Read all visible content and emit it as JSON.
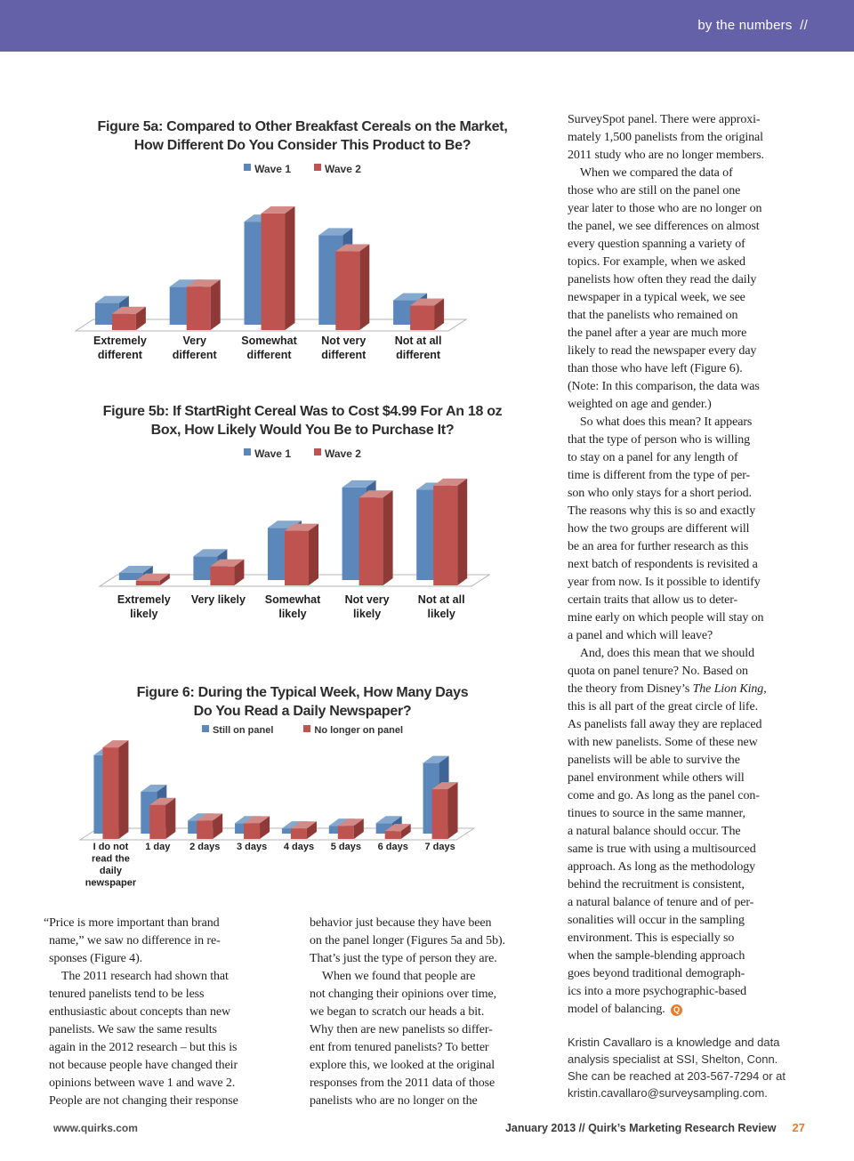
{
  "header": {
    "section_label": "by the numbers  //",
    "band_color": "#6461a8"
  },
  "chart_data": [
    {
      "type": "bar",
      "title": "Figure 5a: Compared to Other Breakfast Cereals on the Market, How Different Do You Consider This Product to Be?",
      "title_lines": [
        "Figure 5a: Compared to Other Breakfast Cereals on the Market,",
        "How Different Do You Consider This Product to Be?"
      ],
      "categories": [
        "Extremely\ndifferent",
        "Very\ndifferent",
        "Somewhat\ndifferent",
        "Not very\ndifferent",
        "Not at all\ndifferent"
      ],
      "series": [
        {
          "name": "Wave 1",
          "color": "#5c87bb",
          "color_top": "#85a8cf",
          "color_side": "#3f6496",
          "values": [
            8,
            14,
            38,
            33,
            9
          ]
        },
        {
          "name": "Wave 2",
          "color": "#bf5350",
          "color_top": "#d28a86",
          "color_side": "#8f3a37",
          "values": [
            6,
            16,
            43,
            29,
            9
          ]
        }
      ],
      "xlabel": "",
      "ylabel": "",
      "value_axis_shown": false,
      "note": "3D bar chart, no value axis; values estimated from bar heights (relative %)",
      "legend_position": "top"
    },
    {
      "type": "bar",
      "title": "Figure 5b: If StartRight Cereal Was to Cost $4.99 For An 18 oz Box, How Likely Would You Be to Purchase It?",
      "title_lines": [
        "Figure 5b: If StartRight Cereal Was to Cost $4.99 For An 18 oz",
        "Box, How Likely Would You Be to Purchase It?"
      ],
      "categories": [
        "Extremely\nlikely",
        "Very likely",
        "Somewhat\nlikely",
        "Not very\nlikely",
        "Not at all\nlikely"
      ],
      "series": [
        {
          "name": "Wave 1",
          "color": "#5c87bb",
          "color_top": "#85a8cf",
          "color_side": "#3f6496",
          "values": [
            3,
            10,
            22,
            39,
            38
          ]
        },
        {
          "name": "Wave 2",
          "color": "#bf5350",
          "color_top": "#d28a86",
          "color_side": "#8f3a37",
          "values": [
            2,
            8,
            23,
            37,
            42
          ]
        }
      ],
      "xlabel": "",
      "ylabel": "",
      "value_axis_shown": false,
      "note": "3D bar chart, no value axis; values estimated from bar heights (relative %)",
      "legend_position": "top"
    },
    {
      "type": "bar",
      "title": "Figure 6: During the Typical Week, How Many Days Do You Read a Daily Newspaper?",
      "title_lines": [
        "Figure 6: During the Typical Week, How Many Days",
        "Do You Read a Daily Newspaper?"
      ],
      "categories": [
        "I do not\nread the\ndaily\nnewspaper",
        "1 day",
        "2 days",
        "3 days",
        "4 days",
        "5 days",
        "6 days",
        "7 days"
      ],
      "series": [
        {
          "name": "Still on panel",
          "color": "#5c87bb",
          "color_top": "#85a8cf",
          "color_side": "#3f6496",
          "values": [
            30,
            16,
            5,
            4,
            2,
            3,
            4,
            27
          ]
        },
        {
          "name": "No longer on panel",
          "color": "#bf5350",
          "color_top": "#d28a86",
          "color_side": "#8f3a37",
          "values": [
            35,
            13,
            7,
            6,
            4,
            5,
            3,
            19
          ]
        }
      ],
      "xlabel": "",
      "ylabel": "",
      "value_axis_shown": false,
      "note": "3D bar chart, no value axis; values estimated from bar heights (relative %)",
      "legend_position": "top"
    }
  ],
  "article": {
    "left_column_lines": [
      "“Price is more important than brand",
      "name,” we saw no difference in re-",
      "sponses (Figure 4).",
      " The 2011 research had shown that",
      "tenured panelists tend to be less",
      "enthusiastic about concepts than new",
      "panelists. We saw the same results",
      "again in the 2012 research – but this is",
      "not because people have changed their",
      "opinions between wave 1 and wave 2.",
      "People are not changing their response"
    ],
    "middle_column_lines": [
      "behavior just because they have been",
      "on the panel longer (Figures 5a and 5b).",
      "That’s just the type of person they are.",
      " When we found that people are",
      "not changing their opinions over time,",
      "we began to scratch our heads a bit.",
      "Why then are new panelists so differ-",
      "ent from tenured panelists? To better",
      "explore this, we looked at the original",
      "responses from the 2011 data of those",
      "panelists who are no longer on the"
    ],
    "right_column_lines": [
      "SurveySpot panel. There were approxi-",
      "mately 1,500 panelists from the original",
      "2011 study who are no longer members.",
      " When we compared the data of",
      "those who are still on the panel one",
      "year later to those who are no longer on",
      "the panel, we see differences on almost",
      "every question spanning a variety of",
      "topics. For example, when we asked",
      "panelists how often they read the daily",
      "newspaper in a typical week, we see",
      "that the panelists who remained on",
      "the panel after a year are much more",
      "likely to read the newspaper every day",
      "than those who have left (Figure 6).",
      "(Note: In this comparison, the data was",
      "weighted on age and gender.)",
      " So what does this mean? It appears",
      "that the type of person who is willing",
      "to stay on a panel for any length of",
      "time is different from the type of per-",
      "son who only stays for a short period.",
      "The reasons why this is so and exactly",
      "how the two groups are different will",
      "be an area for further research as this",
      "next batch of respondents is revisited a",
      "year from now. Is it possible to identify",
      "certain traits that allow us to deter-",
      "mine early on which people will stay on",
      "a panel and which will leave?",
      " And, does this mean that we should",
      "quota on panel tenure? No. Based on",
      "the theory from Disney’s *The Lion King*,",
      "this is all part of the great circle of life.",
      "As panelists fall away they are replaced",
      "with new panelists. Some of these new",
      "panelists will be able to survive the",
      "panel environment while others will",
      "come and go. As long as the panel con-",
      "tinues to source in the same manner,",
      "a natural balance should occur. The",
      "same is true with using a multisourced",
      "approach. As long as the methodology",
      "behind the recruitment is consistent,",
      "a natural balance of tenure and of per-",
      "sonalities will occur in the sampling",
      "environment. This is especially so",
      "when the sample-blending approach",
      "goes beyond traditional demograph-",
      "ics into a more psychographic-based",
      "model of balancing. [[Q]]"
    ],
    "bio_lines": [
      "Kristin Cavallaro is a knowledge and data",
      "analysis specialist at SSI, Shelton, Conn.",
      "She can be reached at 203-567-7294 or at",
      "kristin.cavallaro@surveysampling.com."
    ]
  },
  "footer": {
    "site": "www.quirks.com",
    "issue": "January 2013 // Quirk’s Marketing Research Review",
    "page": "27"
  }
}
